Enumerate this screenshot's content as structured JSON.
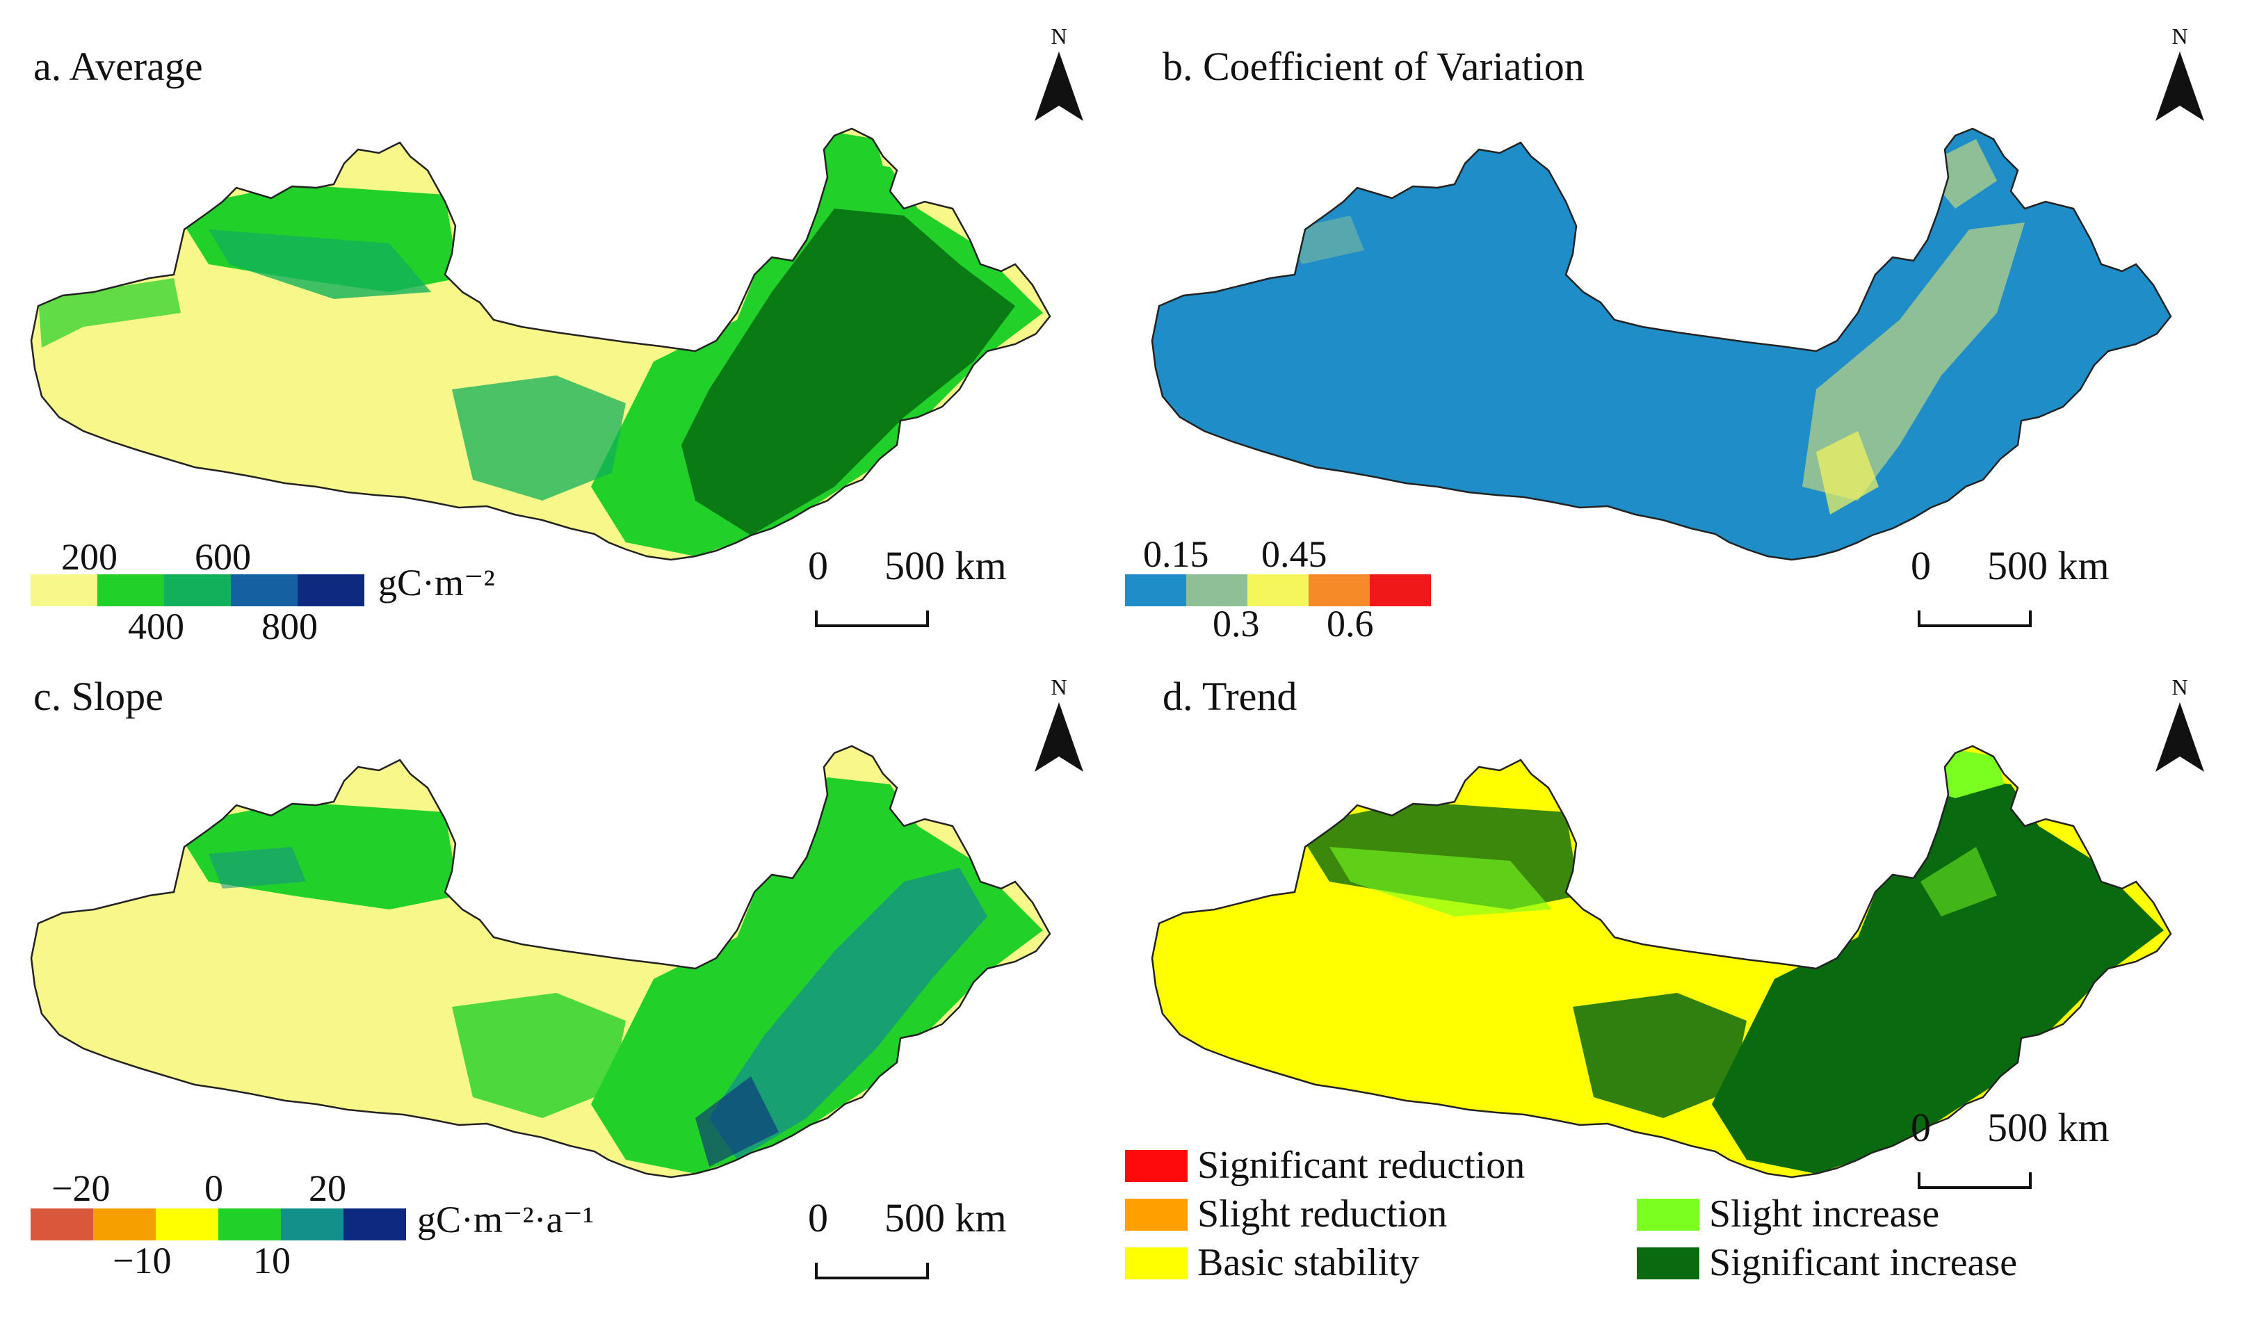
{
  "compass": {
    "letter": "N"
  },
  "scale": {
    "zero": "0",
    "distance": "500 km"
  },
  "colors": {
    "yellow_light": "#f7f78a",
    "yellow": "#ffff00",
    "green_bright": "#22d02a",
    "green_mid": "#12b05a",
    "green_dark": "#0a7a14",
    "teal": "#14908a",
    "blue_mid": "#1560a0",
    "navy": "#0d2a80",
    "cv_blue": "#1f8ec8",
    "cv_sage": "#8fbf96",
    "cv_yellow": "#f5f55c",
    "cv_orange": "#f68a28",
    "cv_red": "#f01818",
    "slope_red": "#d9573a",
    "slope_orange": "#f5a000",
    "trend_red": "#ff0a0a",
    "trend_orange": "#ffa000",
    "trend_lime": "#7aff20",
    "trend_green": "#0a6a10"
  },
  "panels": {
    "a": {
      "title": "a. Average",
      "legend_top": [
        "200",
        "600"
      ],
      "legend_bottom": [
        "400",
        "800"
      ],
      "unit": "gC·m⁻²",
      "bins": [
        "#f7f78a",
        "#22d02a",
        "#12b05a",
        "#1560a0",
        "#0d2a80"
      ]
    },
    "b": {
      "title": "b. Coefficient of Variation",
      "legend_top": [
        "0.15",
        "0.45"
      ],
      "legend_bottom": [
        "0.3",
        "0.6"
      ],
      "bins": [
        "#1f8ec8",
        "#8fbf96",
        "#f5f55c",
        "#f68a28",
        "#f01818"
      ]
    },
    "c": {
      "title": "c. Slope",
      "legend_top": [
        "−20",
        "0",
        "20"
      ],
      "legend_bottom": [
        "−10",
        "10"
      ],
      "unit": "gC·m⁻²·a⁻¹",
      "bins": [
        "#d9573a",
        "#f5a000",
        "#ffff00",
        "#22d02a",
        "#14908a",
        "#0d2a80"
      ]
    },
    "d": {
      "title": "d. Trend",
      "categories": [
        {
          "label": "Significant reduction",
          "color": "#ff0a0a"
        },
        {
          "label": "Slight reduction",
          "color": "#ffa000"
        },
        {
          "label": "Basic stability",
          "color": "#ffff00"
        },
        {
          "label": "Slight increase",
          "color": "#7aff20"
        },
        {
          "label": "Significant increase",
          "color": "#0a6a10"
        }
      ]
    }
  }
}
